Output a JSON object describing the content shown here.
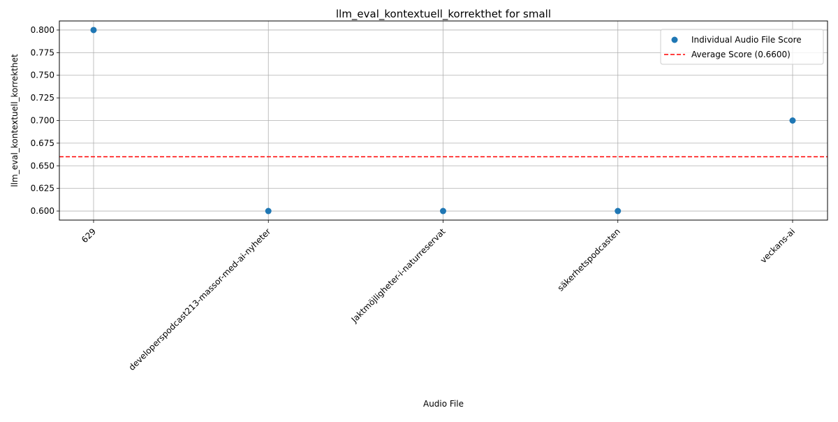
{
  "chart_data": {
    "type": "scatter",
    "title": "llm_eval_kontextuell_korrekthet for small",
    "xlabel": "Audio File",
    "ylabel": "llm_eval_kontextuell_korrekthet",
    "categories": [
      "629",
      "developerspodcast213-massor-med-ai-nyheter",
      "Jaktmöjligheter-i-naturreservat",
      "säkerhetspodcasten",
      "veckans-ai"
    ],
    "series": [
      {
        "name": "Individual Audio File Score",
        "values": [
          0.8,
          0.6,
          0.6,
          0.6,
          0.7
        ],
        "color": "#1f77b4"
      }
    ],
    "average": {
      "name": "Average Score (0.6600)",
      "value": 0.66,
      "color": "#ff0000",
      "style": "dashed"
    },
    "yticks": [
      "0.600",
      "0.625",
      "0.650",
      "0.675",
      "0.700",
      "0.725",
      "0.750",
      "0.775",
      "0.800"
    ],
    "ylim": [
      0.59,
      0.81
    ],
    "grid": true,
    "legend_position": "top-right"
  }
}
